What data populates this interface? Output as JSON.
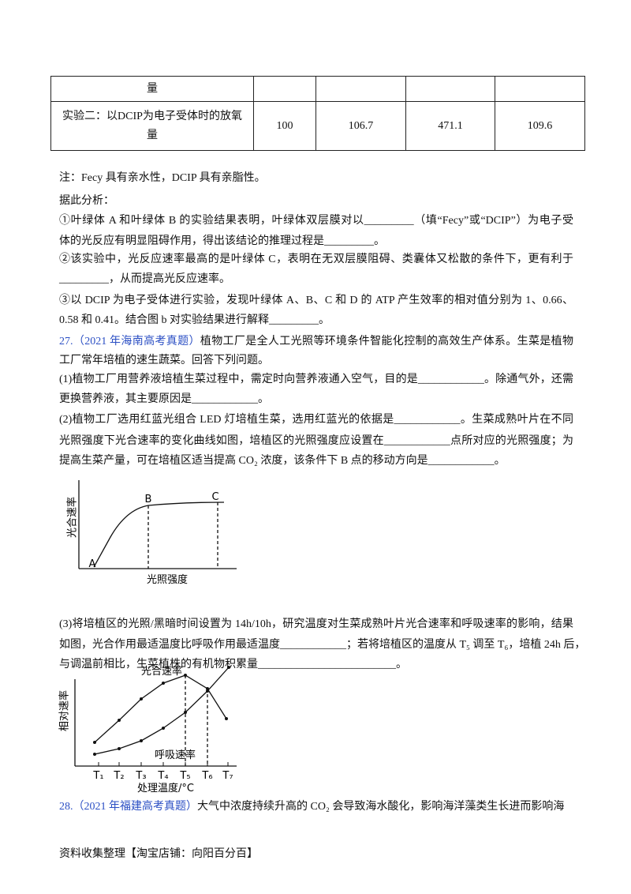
{
  "table": {
    "rows": [
      {
        "label": "量"
      },
      {
        "label": "实验二：以DCIP为电子受体时的放氧量",
        "values": [
          100,
          106.7,
          471.1,
          109.6
        ]
      }
    ]
  },
  "lines_a": [
    "注：Fecy 具有亲水性，DCIP 具有亲脂性。",
    "据此分析：",
    "①叶绿体 A 和叶绿体 B 的实验结果表明，叶绿体双层膜对以_________（填“Fecy”或“DCIP”）为电子受",
    "体的光反应有明显阻碍作用，得出该结论的推理过程是_________。",
    "②该实验中，光反应速率最高的是叶绿体 C，表明在无双层膜阻碍、类囊体又松散的条件下，更有利于",
    "_________，从而提高光反应速率。",
    "③以 DCIP 为电子受体进行实验，发现叶绿体 A、B、C 和 D 的 ATP 产生效率的相对值分别为 1、0.66、",
    "0.58 和 0.41。结合图 b 对实验结果进行解释_________。",
    {
      "number": "27.",
      "source": "（2021 年海南高考真题）",
      "text": "植物工厂是全人工光照等环境条件智能化控制的高效生产体系。生菜是植物"
    },
    "工厂常年培植的速生蔬菜。回答下列问题。",
    "(1)植物工厂用营养液培植生菜过程中，需定时向营养液通入空气，目的是____________。除通气外，还需",
    "更换营养液，其主要原因是____________。",
    "(2)植物工厂选用红蓝光组合 LED 灯培植生菜，选用红蓝光的依据是____________。生菜成熟叶片在不同",
    "光照强度下光合速率的变化曲线如图，培植区的光照强度应设置在____________点所对应的光照强度；为",
    "提高生菜产量，可在培植区适当提高 CO₂ 浓度，该条件下 B 点的移动方向是____________。"
  ],
  "figure1": {
    "y_label": "光合速率",
    "x_label": "光照强度",
    "points": [
      "A",
      "B",
      "C"
    ]
  },
  "lines_b": [
    "(3)将培植区的光照/黑暗时间设置为 14h/10h，研究温度对生菜成熟叶片光合速率和呼吸速率的影响，结果",
    "如图，光合作用最适温度比呼吸作用最适温度____________；若将培植区的温度从 T₅ 调至 T₆，培植 24h 后，",
    "与调温前相比，生菜植株的有机物积累量_________________________。"
  ],
  "figure2": {
    "y_label": "相对速率",
    "x_label": "处理温度/°C",
    "curve1": "光合速率",
    "curve2": "呼吸速率",
    "ticks": [
      "T₁",
      "T₂",
      "T₃",
      "T₄",
      "T₅",
      "T₆",
      "T₇"
    ]
  },
  "lines_c": [
    {
      "number": "28.",
      "source": "（2021 年福建高考真题）",
      "text": "大气中浓度持续升高的 CO₂ 会导致海水酸化，影响海洋藻类生长进而影响海"
    }
  ],
  "footer": "资料收集整理【淘宝店铺：向阳百分百】"
}
